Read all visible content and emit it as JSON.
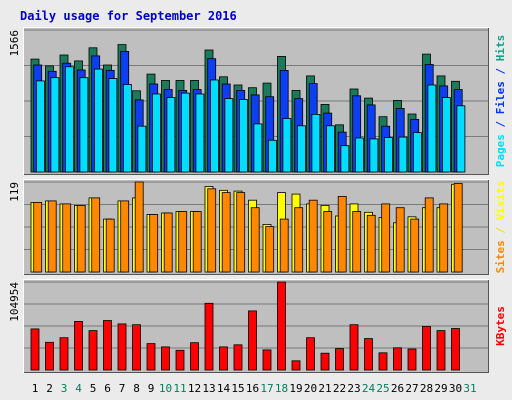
{
  "chart_data": [
    {
      "type": "bar",
      "title": "Daily usage for September 2016",
      "ymax_label": "1566",
      "ylabel_parts": [
        {
          "text": "Pages",
          "color": "#00ddff"
        },
        {
          "text": " / ",
          "color": "#0033ff"
        },
        {
          "text": "Files",
          "color": "#0033ff"
        },
        {
          "text": " / ",
          "color": "#0033ff"
        },
        {
          "text": "Hits",
          "color": "#16a08a"
        }
      ],
      "ylim": [
        0,
        1566
      ],
      "categories": [
        "1",
        "2",
        "3",
        "4",
        "5",
        "6",
        "7",
        "8",
        "9",
        "10",
        "11",
        "12",
        "13",
        "14",
        "15",
        "16",
        "17",
        "18",
        "19",
        "20",
        "21",
        "22",
        "23",
        "24",
        "25",
        "26",
        "27",
        "28",
        "29",
        "30"
      ],
      "series": [
        {
          "name": "Hits",
          "color": "#1a7a5a",
          "values": [
            1245,
            1170,
            1290,
            1225,
            1370,
            1180,
            1405,
            895,
            1080,
            1010,
            1010,
            1010,
            1345,
            1050,
            960,
            930,
            980,
            1275,
            900,
            1060,
            745,
            520,
            915,
            815,
            610,
            790,
            640,
            1300,
            1060,
            1000
          ]
        },
        {
          "name": "Files",
          "color": "#0d3ef2",
          "values": [
            1180,
            1110,
            1200,
            1125,
            1280,
            1120,
            1330,
            795,
            970,
            910,
            900,
            910,
            1250,
            970,
            900,
            850,
            830,
            1120,
            810,
            975,
            650,
            440,
            840,
            740,
            505,
            700,
            580,
            1185,
            950,
            910
          ]
        },
        {
          "name": "Pages",
          "color": "#00ddff",
          "values": [
            1005,
            1040,
            1160,
            1040,
            1135,
            1030,
            965,
            505,
            860,
            820,
            870,
            860,
            1015,
            810,
            800,
            530,
            350,
            590,
            510,
            635,
            510,
            290,
            375,
            365,
            380,
            385,
            435,
            960,
            820,
            730
          ]
        }
      ]
    },
    {
      "type": "bar",
      "ymax_label": "119",
      "ylabel_parts": [
        {
          "text": "Sites",
          "color": "#ff8800"
        },
        {
          "text": " / ",
          "color": "#ffdd00"
        },
        {
          "text": "Visits",
          "color": "#ffff00"
        }
      ],
      "ylim": [
        0,
        119
      ],
      "categories": [
        "1",
        "2",
        "3",
        "4",
        "5",
        "6",
        "7",
        "8",
        "9",
        "10",
        "11",
        "12",
        "13",
        "14",
        "15",
        "16",
        "17",
        "18",
        "19",
        "20",
        "21",
        "22",
        "23",
        "24",
        "25",
        "26",
        "27",
        "28",
        "29",
        "30"
      ],
      "series": [
        {
          "name": "Visits",
          "color": "#ffff00",
          "values": [
            92,
            94,
            90,
            88,
            98,
            70,
            94,
            98,
            76,
            78,
            80,
            80,
            113,
            108,
            107,
            95,
            63,
            105,
            103,
            90,
            88,
            74,
            90,
            79,
            72,
            65,
            73,
            85,
            85,
            116
          ]
        },
        {
          "name": "Sites",
          "color": "#ff8800",
          "values": [
            92,
            94,
            90,
            88,
            98,
            70,
            94,
            119,
            76,
            78,
            80,
            80,
            110,
            105,
            105,
            85,
            60,
            70,
            85,
            95,
            80,
            100,
            80,
            75,
            90,
            85,
            70,
            98,
            90,
            117
          ]
        }
      ]
    },
    {
      "type": "bar",
      "ymax_label": "104954",
      "ylabel_parts": [
        {
          "text": "KBytes",
          "color": "#ff0000"
        }
      ],
      "ylim": [
        0,
        104954
      ],
      "categories": [
        "1",
        "2",
        "3",
        "4",
        "5",
        "6",
        "7",
        "8",
        "9",
        "10",
        "11",
        "12",
        "13",
        "14",
        "15",
        "16",
        "17",
        "18",
        "19",
        "20",
        "21",
        "22",
        "23",
        "24",
        "25",
        "26",
        "27",
        "28",
        "29",
        "30"
      ],
      "series": [
        {
          "name": "KBytes",
          "color": "#ff0000",
          "values": [
            49000,
            33000,
            38500,
            58000,
            47000,
            59000,
            55000,
            54000,
            31500,
            27500,
            23500,
            32500,
            79500,
            27500,
            30000,
            70500,
            24000,
            104954,
            11000,
            38500,
            20000,
            25500,
            54000,
            37500,
            20500,
            26500,
            25000,
            52000,
            47000,
            49500
          ]
        }
      ]
    }
  ],
  "x_axis": {
    "labels": [
      "1",
      "2",
      "3",
      "4",
      "5",
      "6",
      "7",
      "8",
      "9",
      "10",
      "11",
      "12",
      "13",
      "14",
      "15",
      "16",
      "17",
      "18",
      "19",
      "20",
      "21",
      "22",
      "23",
      "24",
      "25",
      "26",
      "27",
      "28",
      "29",
      "30",
      "31"
    ],
    "weekend_days": [
      "3",
      "4",
      "10",
      "11",
      "17",
      "18",
      "24",
      "25",
      "31"
    ],
    "weekday_color": "#000000",
    "weekend_color": "#00805a"
  },
  "colors": {
    "page_background": "#ebebeb",
    "panel_background": "#bfbfbf",
    "gridline": "#7a7a7a",
    "title": "#0000cc"
  }
}
